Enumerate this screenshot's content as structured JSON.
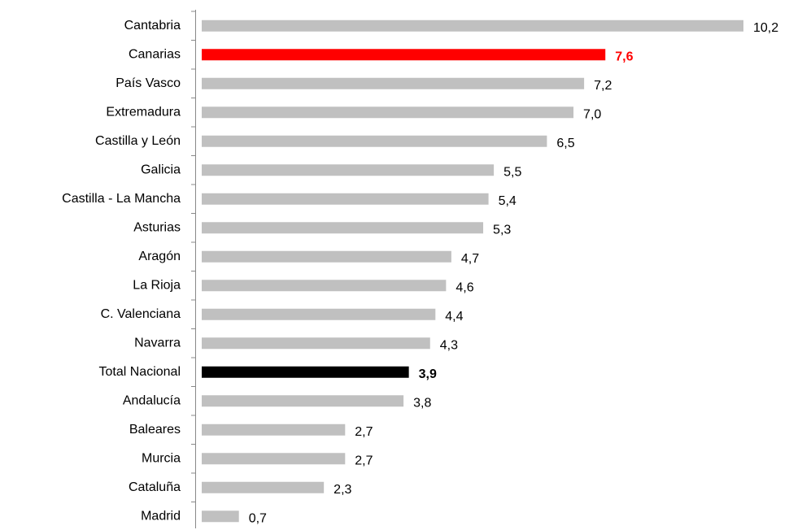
{
  "chart_data": {
    "type": "barh",
    "categories": [
      "Cantabria",
      "Canarias",
      "País Vasco",
      "Extremadura",
      "Castilla y León",
      "Galicia",
      "Castilla - La Mancha",
      "Asturias",
      "Aragón",
      "La Rioja",
      "C. Valenciana",
      "Navarra",
      "Total Nacional",
      "Andalucía",
      "Baleares",
      "Murcia",
      "Cataluña",
      "Madrid"
    ],
    "values": [
      10.2,
      7.6,
      7.2,
      7.0,
      6.5,
      5.5,
      5.4,
      5.3,
      4.7,
      4.6,
      4.4,
      4.3,
      3.9,
      3.8,
      2.7,
      2.7,
      2.3,
      0.7
    ],
    "value_labels": [
      "10,2",
      "7,6",
      "7,2",
      "7,0",
      "6,5",
      "5,5",
      "5,4",
      "5,3",
      "4,7",
      "4,6",
      "4,4",
      "4,3",
      "3,9",
      "3,8",
      "2,7",
      "2,7",
      "2,3",
      "0,7"
    ],
    "colors": [
      "#c0c0c0",
      "#ff0000",
      "#c0c0c0",
      "#c0c0c0",
      "#c0c0c0",
      "#c0c0c0",
      "#c0c0c0",
      "#c0c0c0",
      "#c0c0c0",
      "#c0c0c0",
      "#c0c0c0",
      "#c0c0c0",
      "#000000",
      "#c0c0c0",
      "#c0c0c0",
      "#c0c0c0",
      "#c0c0c0",
      "#c0c0c0"
    ]
  }
}
